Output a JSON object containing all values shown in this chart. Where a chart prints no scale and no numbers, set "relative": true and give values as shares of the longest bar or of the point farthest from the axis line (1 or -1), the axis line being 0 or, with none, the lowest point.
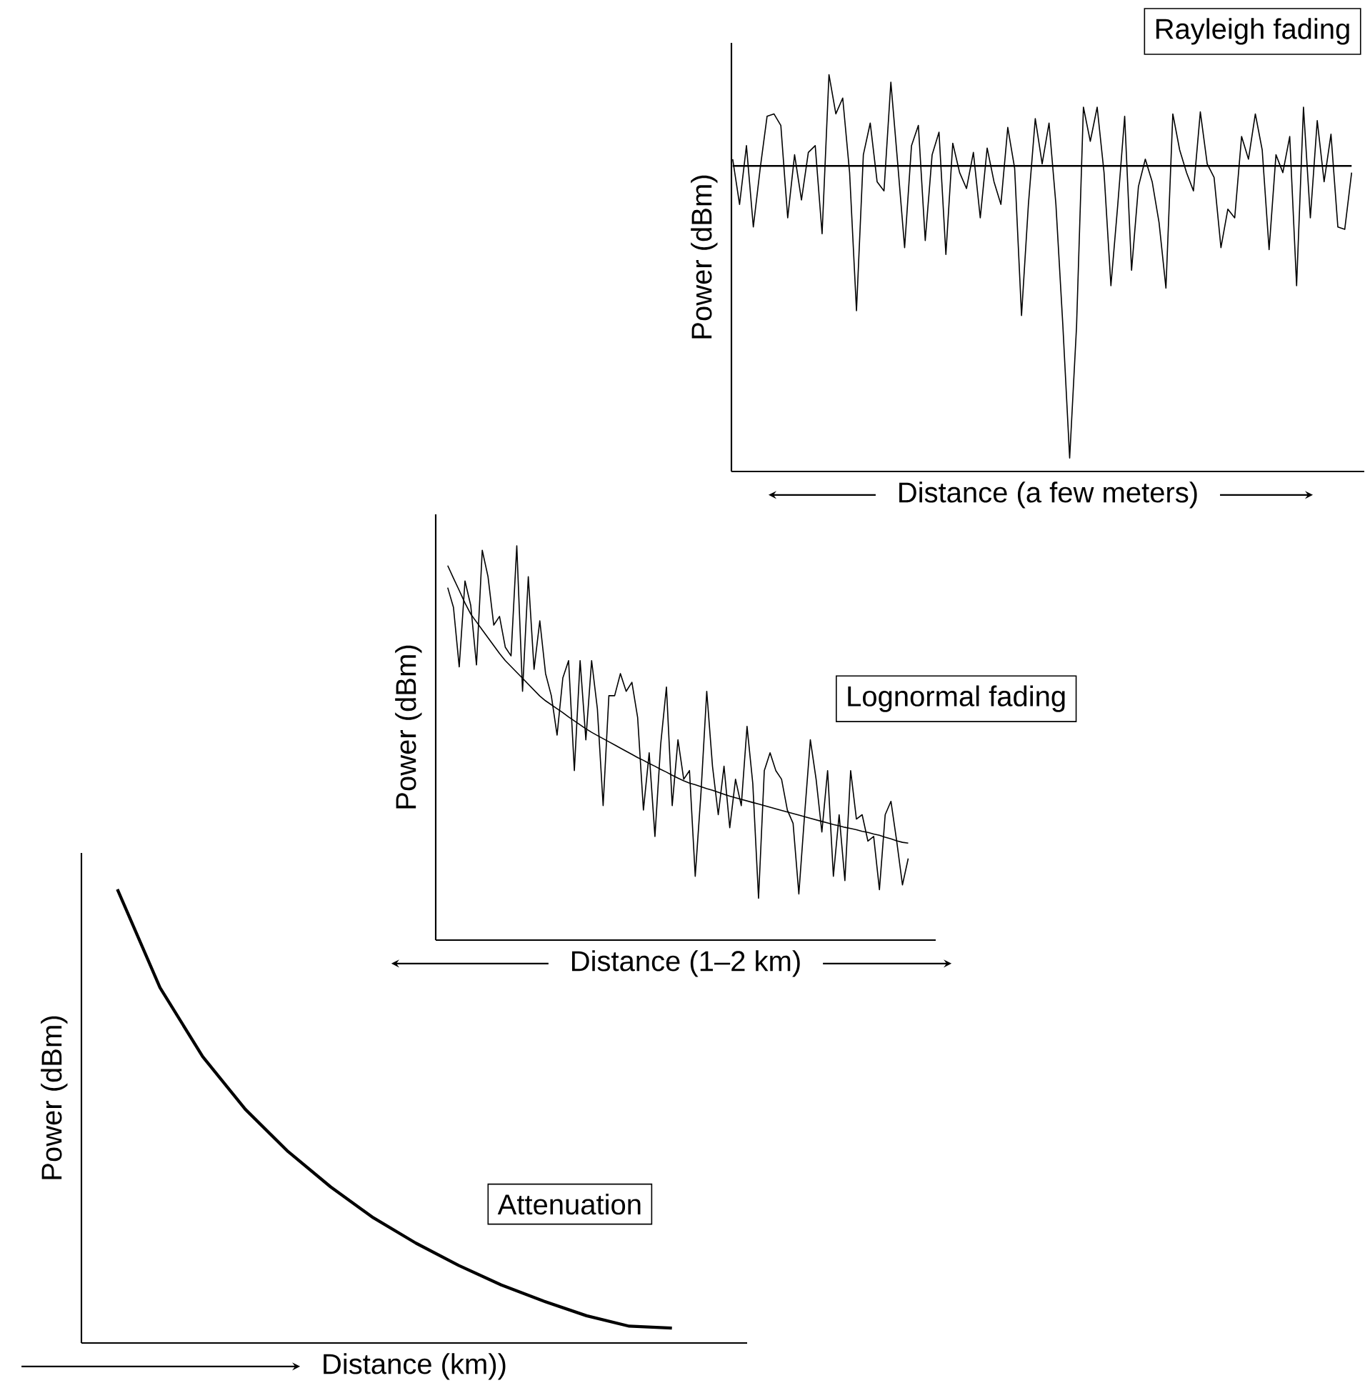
{
  "chart_data": [
    {
      "type": "line",
      "title": "Rayleigh fading",
      "xlabel": "Distance (a few meters)",
      "ylabel": "Power (dBm)",
      "relative": true,
      "categories": [
        null,
        null,
        null,
        null,
        null,
        null,
        null,
        null,
        null,
        null,
        null,
        null,
        null,
        null,
        null,
        null,
        null,
        null,
        null,
        null,
        null,
        null,
        null,
        null,
        null,
        null,
        null,
        null,
        null,
        null,
        null,
        null,
        null,
        null,
        null,
        null,
        null,
        null,
        null,
        null,
        null,
        null,
        null,
        null,
        null,
        null,
        null,
        null,
        null,
        null,
        null,
        null,
        null,
        null,
        null,
        null,
        null,
        null,
        null,
        null,
        null,
        null,
        null,
        null,
        null,
        null,
        null,
        null,
        null,
        null,
        null,
        null,
        null,
        null,
        null,
        null,
        null,
        null,
        null,
        null,
        null,
        null,
        null,
        null,
        null,
        null,
        null,
        null,
        null,
        null,
        null
      ],
      "series": [
        {
          "color": "#000000",
          "values": [
            0.787,
            0.673,
            0.821,
            0.616,
            0.764,
            0.895,
            0.901,
            0.872,
            0.639,
            0.798,
            0.684,
            0.804,
            0.821,
            0.599,
            1,
            0.901,
            0.941,
            0.753,
            0.405,
            0.798,
            0.878,
            0.73,
            0.707,
            0.981,
            0.775,
            0.564,
            0.821,
            0.872,
            0.582,
            0.798,
            0.855,
            0.547,
            0.827,
            0.753,
            0.713,
            0.804,
            0.639,
            0.815,
            0.73,
            0.673,
            0.867,
            0.764,
            0.393,
            0.673,
            0.889,
            0.775,
            0.878,
            0.673,
            0.371,
            0.034,
            0.365,
            0.918,
            0.832,
            0.918,
            0.753,
            0.468,
            0.673,
            0.895,
            0.507,
            0.718,
            0.787,
            0.73,
            0.627,
            0.462,
            0.901,
            0.81,
            0.753,
            0.707,
            0.906,
            0.775,
            0.741,
            0.564,
            0.661,
            0.639,
            0.844,
            0.787,
            0.901,
            0.81,
            0.559,
            0.798,
            0.753,
            0.844,
            0.468,
            0.918,
            0.639,
            0.884,
            0.73,
            0.85,
            0.616,
            0.61,
            0.753
          ]
        }
      ],
      "ref_lines": [
        {
          "axis": "y",
          "value": 0.77,
          "color": "#000000"
        }
      ]
    },
    {
      "type": "line",
      "title": "Lognormal fading",
      "xlabel": "Distance (1–2 km)",
      "ylabel": "Power (dBm)",
      "relative": true,
      "categories": [
        null,
        null,
        null,
        null,
        null,
        null,
        null,
        null,
        null,
        null,
        null,
        null,
        null,
        null,
        null,
        null,
        null,
        null,
        null,
        null,
        null,
        null,
        null,
        null,
        null,
        null,
        null,
        null,
        null,
        null,
        null,
        null,
        null,
        null,
        null,
        null,
        null,
        null,
        null,
        null,
        null,
        null,
        null,
        null,
        null,
        null,
        null,
        null,
        null,
        null,
        null,
        null,
        null,
        null,
        null,
        null,
        null,
        null,
        null,
        null,
        null,
        null,
        null,
        null,
        null,
        null,
        null,
        null,
        null,
        null,
        null,
        null,
        null,
        null,
        null,
        null,
        null,
        null,
        null,
        null,
        null
      ],
      "series": [
        {
          "color": "#000000",
          "values": [
            0.894,
            0.844,
            0.693,
            0.911,
            0.849,
            0.698,
            0.989,
            0.922,
            0.799,
            0.821,
            0.743,
            0.721,
            1,
            0.631,
            0.922,
            0.687,
            0.81,
            0.676,
            0.62,
            0.52,
            0.665,
            0.709,
            0.43,
            0.709,
            0.508,
            0.709,
            0.587,
            0.341,
            0.62,
            0.62,
            0.676,
            0.631,
            0.654,
            0.564,
            0.33,
            0.475,
            0.263,
            0.497,
            0.642,
            0.341,
            0.508,
            0.408,
            0.43,
            0.162,
            0.374,
            0.631,
            0.441,
            0.318,
            0.441,
            0.285,
            0.408,
            0.341,
            0.542,
            0.397,
            0.106,
            0.43,
            0.475,
            0.43,
            0.408,
            0.33,
            0.296,
            0.117,
            0.318,
            0.508,
            0.408,
            0.274,
            0.43,
            0.162,
            0.318,
            0.151,
            0.43,
            0.307,
            0.318,
            0.251,
            0.263,
            0.128,
            0.318,
            0.352,
            0.251,
            0.14,
            0.207
          ]
        },
        {
          "color": "#000000",
          "values": [
            0.95,
            0.918,
            0.887,
            0.855,
            0.827,
            0.807,
            0.787,
            0.767,
            0.747,
            0.727,
            0.709,
            0.694,
            0.679,
            0.664,
            0.649,
            0.634,
            0.619,
            0.607,
            0.597,
            0.587,
            0.577,
            0.566,
            0.556,
            0.546,
            0.536,
            0.527,
            0.519,
            0.511,
            0.503,
            0.495,
            0.487,
            0.479,
            0.471,
            0.463,
            0.456,
            0.448,
            0.441,
            0.433,
            0.426,
            0.418,
            0.411,
            0.404,
            0.398,
            0.394,
            0.389,
            0.384,
            0.38,
            0.375,
            0.37,
            0.365,
            0.361,
            0.357,
            0.353,
            0.349,
            0.345,
            0.341,
            0.337,
            0.333,
            0.329,
            0.325,
            0.321,
            0.317,
            0.313,
            0.309,
            0.305,
            0.301,
            0.297,
            0.293,
            0.29,
            0.286,
            0.283,
            0.28,
            0.276,
            0.273,
            0.269,
            0.266,
            0.261,
            0.257,
            0.252,
            0.248,
            0.246
          ]
        }
      ]
    },
    {
      "type": "line",
      "title": "Attenuation",
      "xlabel": "Distance (km))",
      "ylabel": "Power (dBm)",
      "relative": true,
      "categories": [
        null,
        null,
        null,
        null,
        null,
        null,
        null,
        null,
        null,
        null,
        null,
        null,
        null,
        null
      ],
      "series": [
        {
          "color": "#000000",
          "values": [
            1,
            0.783,
            0.631,
            0.515,
            0.422,
            0.344,
            0.276,
            0.22,
            0.171,
            0.128,
            0.092,
            0.06,
            0.037,
            0.033
          ]
        }
      ]
    }
  ]
}
